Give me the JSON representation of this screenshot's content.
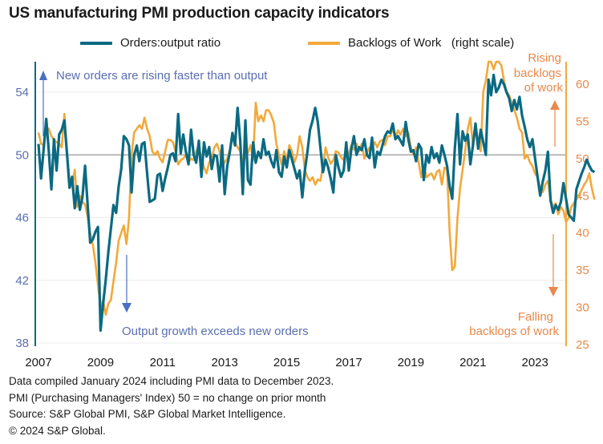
{
  "title": "US manufacturing PMI production capacity indicators",
  "legend": {
    "series1": "Orders:output ratio",
    "series2": "Backlogs of Work   (right scale)"
  },
  "annotations": {
    "up_left": "New orders are rising faster than output",
    "down_left": "Output growth exceeds new orders",
    "up_right_1": "Rising",
    "up_right_2": "backlogs",
    "up_right_3": "of work",
    "down_right_1": "Falling",
    "down_right_2": "backlogs of work"
  },
  "footer": {
    "line1": "Data compiled January 2024 including PMI data to December 2023.",
    "line2": "PMI (Purchasing Managers' Index) 50 = no change on prior month",
    "line3": "Source: S&P Global PMI, S&P Global Market Intelligence.",
    "line4": "© 2024 S&P Global."
  },
  "colors": {
    "series1": "#0b6a82",
    "series2": "#f2a93b",
    "left_axis_text": "#5a6fb0",
    "right_axis_text": "#e8894b",
    "annotation_blue": "#4a6fc4",
    "annotation_orange": "#e8894b"
  },
  "chart_data": {
    "type": "line",
    "title": "US manufacturing PMI production capacity indicators",
    "xlabel": "",
    "ylabel": "",
    "x_start": "2007-01",
    "x_end": "2023-12",
    "frequency": "monthly",
    "x_ticks": [
      "2007",
      "2009",
      "2011",
      "2013",
      "2015",
      "2017",
      "2019",
      "2021",
      "2023"
    ],
    "y_left": {
      "ylim": [
        38,
        56
      ],
      "ticks": [
        38,
        42,
        46,
        50,
        54
      ]
    },
    "y_right": {
      "ylim": [
        25,
        63
      ],
      "ticks": [
        25,
        30,
        35,
        40,
        45,
        50,
        55,
        60
      ]
    },
    "reference_line": 50,
    "grid": true,
    "legend_position": "top",
    "series": [
      {
        "name": "Orders:output ratio",
        "axis": "left",
        "values": [
          50.7,
          48.5,
          50.4,
          52.3,
          50.2,
          47.8,
          51.0,
          49.0,
          51.3,
          51.6,
          52.2,
          50.1,
          47.9,
          48.6,
          46.6,
          48.0,
          46.5,
          47.3,
          49.3,
          46.8,
          44.4,
          44.6,
          45.1,
          45.4,
          38.8,
          40.5,
          42.0,
          43.8,
          45.3,
          46.8,
          46.3,
          48.0,
          49.1,
          51.2,
          51.0,
          50.6,
          47.6,
          50.0,
          50.6,
          49.6,
          50.7,
          50.8,
          48.8,
          47.0,
          47.1,
          47.2,
          48.7,
          48.8,
          47.7,
          48.5,
          49.2,
          50.0,
          50.1,
          49.6,
          52.6,
          50.1,
          51.3,
          50.2,
          49.4,
          51.6,
          50.0,
          49.5,
          50.9,
          48.6,
          50.8,
          49.9,
          50.5,
          49.1,
          50.0,
          49.9,
          48.3,
          50.6,
          47.5,
          49.3,
          50.2,
          51.4,
          50.6,
          53.0,
          50.9,
          47.5,
          52.2,
          48.4,
          48.1,
          50.8,
          49.5,
          50.2,
          49.8,
          51.0,
          50.0,
          50.2,
          49.6,
          49.2,
          50.3,
          48.9,
          48.6,
          49.9,
          49.2,
          50.3,
          49.7,
          49.1,
          48.5,
          49.0,
          47.3,
          49.0,
          50.2,
          51.6,
          52.2,
          53.0,
          52.1,
          50.5,
          48.9,
          49.7,
          49.2,
          48.5,
          47.6,
          50.0,
          49.2,
          48.6,
          49.0,
          50.8,
          49.0,
          50.4,
          51.2,
          50.0,
          50.5,
          50.3,
          51.0,
          50.0,
          49.8,
          51.1,
          49.2,
          50.2,
          50.0,
          50.6,
          51.2,
          51.5,
          51.4,
          52.0,
          51.0,
          51.2,
          50.9,
          50.6,
          52.1,
          51.0,
          50.2,
          50.3,
          49.6,
          50.7,
          50.4,
          48.4,
          50.0,
          49.5,
          50.5,
          49.8,
          50.1,
          49.5,
          50.6,
          50.0,
          49.3,
          48.0,
          47.2,
          50.4,
          52.6,
          49.4,
          51.5,
          50.9,
          51.3,
          49.4,
          50.6,
          52.0,
          50.4,
          51.6,
          50.8,
          50.0,
          54.8,
          53.8,
          55.1,
          54.0,
          54.3,
          54.8,
          54.5,
          54.0,
          53.6,
          52.8,
          53.5,
          52.9,
          53.7,
          52.5,
          51.8,
          51.0,
          50.5,
          51.0,
          49.8,
          48.6,
          47.4,
          48.3,
          49.0,
          50.2,
          47.1,
          46.3,
          46.8,
          46.5,
          47.0,
          48.2,
          47.2,
          46.2,
          46.0,
          45.8,
          47.8,
          48.3,
          48.8,
          49.2,
          49.7,
          49.3,
          49.0,
          48.9
        ]
      },
      {
        "name": "Backlogs of Work",
        "axis": "right",
        "values": [
          53.5,
          52.0,
          51.8,
          54.2,
          54.0,
          53.0,
          52.5,
          52.2,
          52.0,
          51.5,
          56.0,
          51.0,
          47.0,
          46.2,
          48.5,
          43.5,
          45.0,
          44.2,
          43.8,
          42.2,
          40.0,
          38.5,
          36.0,
          33.0,
          30.0,
          31.0,
          29.0,
          30.5,
          31.0,
          33.5,
          36.0,
          39.0,
          40.0,
          41.0,
          38.5,
          42.0,
          50.5,
          53.5,
          54.0,
          54.5,
          54.0,
          55.5,
          54.0,
          53.0,
          51.0,
          50.5,
          51.0,
          50.0,
          49.5,
          51.0,
          52.5,
          52.5,
          52.2,
          51.0,
          49.2,
          49.8,
          50.0,
          50.5,
          49.5,
          50.0,
          49.8,
          51.0,
          51.5,
          50.2,
          48.8,
          48.0,
          49.5,
          50.0,
          51.5,
          52.0,
          51.0,
          49.0,
          49.5,
          50.0,
          51.2,
          53.0,
          52.2,
          51.5,
          51.0,
          49.5,
          50.2,
          50.8,
          51.8,
          49.8,
          57.5,
          55.0,
          55.8,
          55.0,
          56.5,
          56.5,
          55.8,
          54.8,
          52.0,
          50.5,
          49.2,
          51.0,
          49.8,
          51.8,
          51.0,
          49.5,
          50.5,
          53.0,
          51.5,
          48.5,
          47.5,
          47.0,
          47.5,
          46.5,
          47.2,
          47.0,
          49.0,
          51.5,
          50.2,
          49.3,
          49.8,
          51.0,
          50.8,
          50.2,
          49.8,
          51.2,
          50.5,
          51.8,
          51.2,
          52.0,
          51.0,
          52.0,
          50.0,
          50.8,
          51.5,
          51.5,
          52.2,
          51.5,
          52.3,
          52.5,
          51.8,
          53.0,
          53.0,
          54.0,
          52.8,
          53.8,
          53.2,
          54.0,
          53.0,
          53.5,
          51.5,
          50.5,
          51.5,
          49.5,
          47.5,
          49.2,
          47.5,
          47.8,
          48.0,
          47.2,
          48.2,
          48.5,
          46.5,
          48.8,
          48.5,
          40.0,
          35.0,
          35.5,
          42.0,
          46.0,
          48.5,
          51.0,
          54.0,
          55.5,
          51.5,
          54.5,
          52.0,
          51.0,
          59.0,
          60.5,
          63.0,
          63.5,
          62.0,
          63.0,
          63.5,
          62.5,
          60.5,
          59.0,
          58.5,
          57.5,
          56.5,
          55.5,
          54.0,
          53.5,
          50.0,
          50.5,
          49.5,
          49.0,
          48.0,
          47.5,
          46.0,
          45.5,
          46.5,
          47.0,
          44.5,
          43.5,
          44.0,
          42.5,
          43.5,
          43.0,
          41.5,
          42.0,
          43.5,
          44.0,
          44.5,
          45.0,
          45.8,
          46.5,
          47.0,
          48.0,
          46.0,
          44.5
        ]
      }
    ]
  }
}
